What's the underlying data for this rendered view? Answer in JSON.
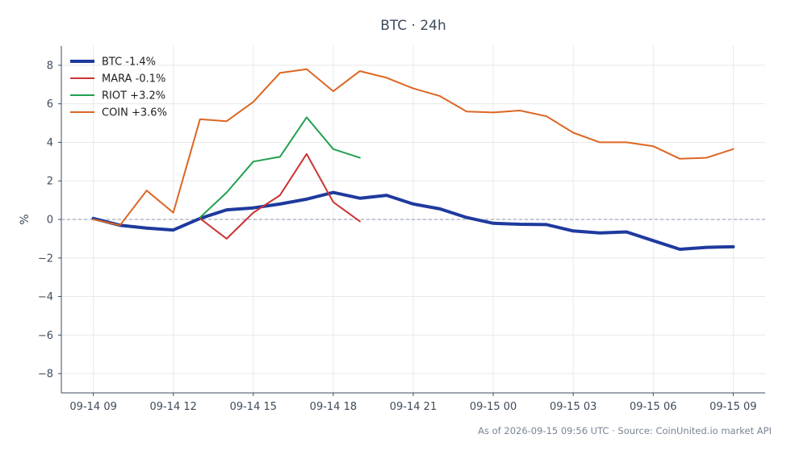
{
  "chart_data": {
    "type": "line",
    "title": "BTC · 24h",
    "ylabel": "%",
    "ylim": [
      -9,
      9
    ],
    "yticks": [
      -8,
      -6,
      -4,
      -2,
      0,
      2,
      4,
      6,
      8
    ],
    "ytick_labels": [
      "−8",
      "−6",
      "−4",
      "−2",
      "0",
      "2",
      "4",
      "6",
      "8"
    ],
    "xlim": [
      -1.2,
      25.2
    ],
    "xticks": [
      0,
      3,
      6,
      9,
      12,
      15,
      18,
      21,
      24
    ],
    "xtick_labels": [
      "09-14 09",
      "09-14 12",
      "09-14 15",
      "09-14 18",
      "09-14 21",
      "09-15 00",
      "09-15 03",
      "09-15 06",
      "09-15 09"
    ],
    "zero_line": true,
    "grid": true,
    "legend_position": "top-left",
    "series": [
      {
        "name": "BTC -1.4%",
        "color": "#1f3a9e",
        "width": 4,
        "x": [
          0,
          1,
          2,
          3,
          4,
          5,
          6,
          7,
          8,
          9,
          10,
          11,
          12,
          13,
          14,
          15,
          16,
          17,
          18,
          19,
          20,
          21,
          22,
          23,
          24
        ],
        "values": [
          0.05,
          -0.3,
          -0.45,
          -0.55,
          0.05,
          0.5,
          0.6,
          0.8,
          1.05,
          1.4,
          1.1,
          1.25,
          0.8,
          0.55,
          0.1,
          -0.2,
          -0.25,
          -0.27,
          -0.6,
          -0.7,
          -0.65,
          -1.1,
          -1.55,
          -1.45,
          -1.42
        ]
      },
      {
        "name": "MARA -0.1%",
        "color": "#cc3333",
        "width": 2,
        "x": [
          4,
          5,
          6,
          7,
          8,
          9,
          10
        ],
        "values": [
          0.05,
          -1.0,
          0.35,
          1.25,
          3.4,
          0.9,
          -0.1
        ]
      },
      {
        "name": "RIOT +3.2%",
        "color": "#22a050",
        "width": 2,
        "x": [
          4,
          5,
          6,
          7,
          8,
          9,
          10
        ],
        "values": [
          0.1,
          1.4,
          3.0,
          3.25,
          5.3,
          3.65,
          3.2
        ]
      },
      {
        "name": "COIN +3.6%",
        "color": "#dd6622",
        "width": 2,
        "x": [
          0,
          1,
          2,
          3,
          4,
          5,
          6,
          7,
          8,
          9,
          10,
          11,
          12,
          13,
          14,
          15,
          16,
          17,
          18,
          19,
          20,
          21,
          22,
          23,
          24
        ],
        "values": [
          0.0,
          -0.3,
          1.5,
          0.35,
          5.2,
          5.1,
          6.1,
          7.6,
          7.8,
          6.65,
          7.7,
          7.35,
          6.8,
          6.4,
          5.6,
          5.55,
          5.65,
          5.35,
          4.5,
          4.0,
          4.0,
          3.8,
          3.15,
          3.2,
          3.65
        ]
      }
    ]
  },
  "footer": "As of 2026-09-15 09:56 UTC · Source: CoinUnited.io market API"
}
